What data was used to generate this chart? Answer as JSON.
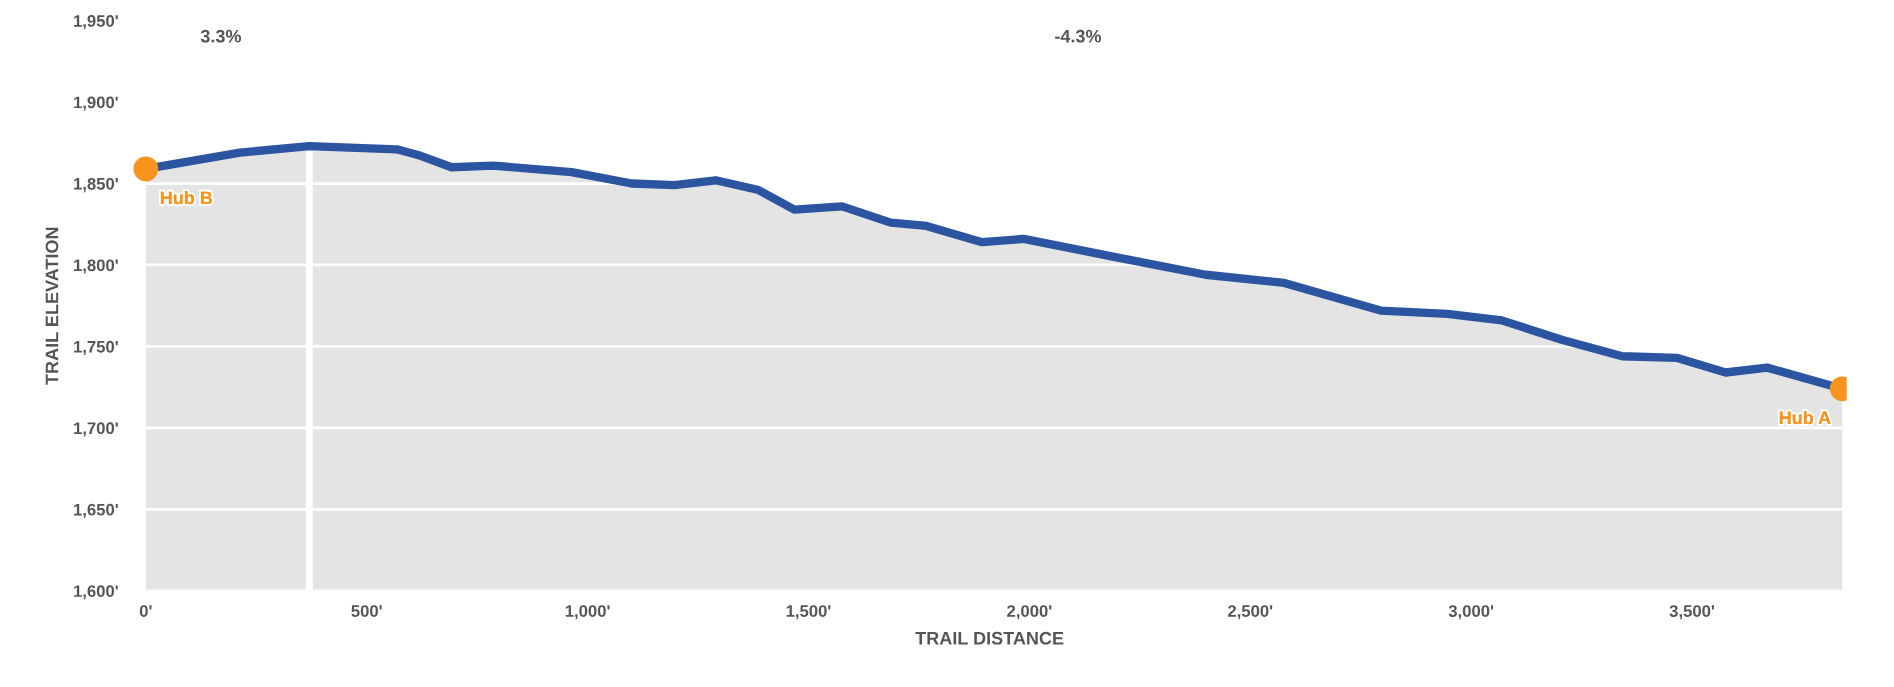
{
  "chart_data": {
    "type": "area",
    "xlabel": "TRAIL DISTANCE",
    "ylabel": "TRAIL ELEVATION",
    "xlim": [
      -30,
      3850
    ],
    "ylim": [
      1600,
      1950
    ],
    "xticks": [
      {
        "value": 0,
        "label": "0'"
      },
      {
        "value": 500,
        "label": "500'"
      },
      {
        "value": 1000,
        "label": "1,000'"
      },
      {
        "value": 1500,
        "label": "1,500'"
      },
      {
        "value": 2000,
        "label": "2,000'"
      },
      {
        "value": 2500,
        "label": "2,500'"
      },
      {
        "value": 3000,
        "label": "3,000'"
      },
      {
        "value": 3500,
        "label": "3,500'"
      }
    ],
    "yticks": [
      {
        "value": 1600,
        "label": "1,600'"
      },
      {
        "value": 1650,
        "label": "1,650'"
      },
      {
        "value": 1700,
        "label": "1,700'"
      },
      {
        "value": 1750,
        "label": "1,750'"
      },
      {
        "value": 1800,
        "label": "1,800'"
      },
      {
        "value": 1850,
        "label": "1,850'"
      },
      {
        "value": 1900,
        "label": "1,900'"
      },
      {
        "value": 1950,
        "label": "1,950'"
      }
    ],
    "grid": "y",
    "series": [
      {
        "color": "#2b55a0",
        "x": [
          0,
          213,
          370,
          568,
          622,
          692,
          787,
          964,
          1100,
          1196,
          1290,
          1387,
          1468,
          1576,
          1686,
          1767,
          1893,
          1987,
          2192,
          2399,
          2577,
          2795,
          2946,
          3069,
          3207,
          3342,
          3465,
          3576,
          3670,
          3840
        ],
        "values": [
          1859,
          1869,
          1873,
          1871,
          1867,
          1860,
          1861,
          1857,
          1850,
          1849,
          1852,
          1846,
          1834,
          1836,
          1826,
          1824,
          1814,
          1816,
          1805,
          1794,
          1789,
          1772,
          1770,
          1766,
          1754,
          1744,
          1743,
          1734,
          1737,
          1724
        ]
      },
      {
        "type": "scatter",
        "color": "#f7941d",
        "marker": "circle",
        "x": [
          0,
          3840
        ],
        "values": [
          1859,
          1724
        ]
      }
    ],
    "ref_lines": [
      {
        "axis": "x",
        "value": 370,
        "color": "#ffffff",
        "line_style": "solid"
      }
    ],
    "annotations": [
      "3.3%",
      "-4.3%",
      {
        "text": "Hub B",
        "x": 0,
        "y": 1859
      },
      {
        "text": "Hub A",
        "x": 3840,
        "y": 1724
      }
    ]
  }
}
